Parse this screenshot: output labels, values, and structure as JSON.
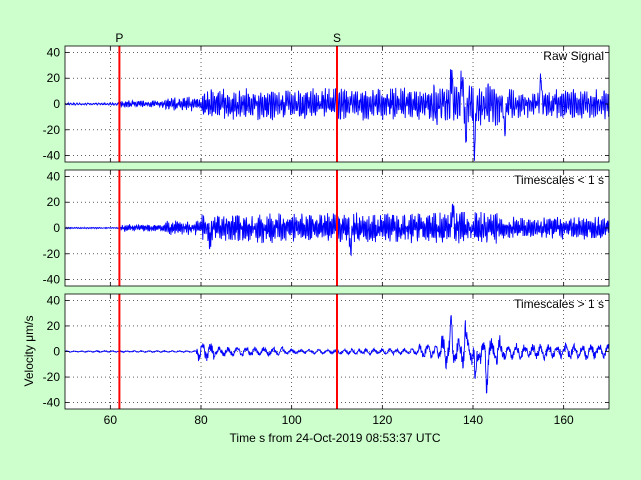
{
  "chart_data": {
    "type": "line",
    "xlabel": "Time s from 24-Oct-2019 08:53:37 UTC",
    "ylabel": "Velocity μm/s",
    "xlim": [
      50,
      170
    ],
    "ylim": [
      -45,
      45
    ],
    "x_ticks": [
      60,
      80,
      100,
      120,
      140,
      160
    ],
    "y_ticks": [
      -40,
      -20,
      0,
      20,
      40
    ],
    "grid": "dotted",
    "phase_markers": [
      {
        "label": "P",
        "x": 62,
        "color": "#ff0000"
      },
      {
        "label": "S",
        "x": 110,
        "color": "#ff0000"
      }
    ],
    "series_color": "#0000ff",
    "panels": [
      {
        "title": "Raw Signal",
        "segments": [
          {
            "t0": 50,
            "t1": 62,
            "amp": 1.0,
            "freq": 1.6
          },
          {
            "t0": 62,
            "t1": 72,
            "amp": 3.0,
            "freq": 2.8
          },
          {
            "t0": 72,
            "t1": 80,
            "amp": 6.0,
            "freq": 2.8
          },
          {
            "t0": 80,
            "t1": 110,
            "amp": 13.0,
            "freq": 2.6
          },
          {
            "t0": 110,
            "t1": 131,
            "amp": 13.0,
            "freq": 2.6
          },
          {
            "t0": 131,
            "t1": 146,
            "amp": 19.0,
            "freq": 2.2
          },
          {
            "t0": 146,
            "t1": 170,
            "amp": 12.0,
            "freq": 2.4
          }
        ],
        "peaks": [
          {
            "t": 135.3,
            "v": 25
          },
          {
            "t": 137.5,
            "v": 21
          },
          {
            "t": 138.4,
            "v": -25
          },
          {
            "t": 140.4,
            "v": -38
          },
          {
            "t": 155.0,
            "v": 22
          },
          {
            "t": 147.0,
            "v": -20
          }
        ]
      },
      {
        "title": "Timescales < 1 s",
        "segments": [
          {
            "t0": 50,
            "t1": 62,
            "amp": 0.6,
            "freq": 2.4
          },
          {
            "t0": 62,
            "t1": 72,
            "amp": 3.0,
            "freq": 3.2
          },
          {
            "t0": 72,
            "t1": 80,
            "amp": 6.0,
            "freq": 3.2
          },
          {
            "t0": 80,
            "t1": 110,
            "amp": 12.0,
            "freq": 3.0
          },
          {
            "t0": 110,
            "t1": 131,
            "amp": 12.0,
            "freq": 3.0
          },
          {
            "t0": 131,
            "t1": 146,
            "amp": 13.0,
            "freq": 3.0
          },
          {
            "t0": 146,
            "t1": 170,
            "amp": 9.0,
            "freq": 3.0
          }
        ],
        "peaks": [
          {
            "t": 135.6,
            "v": 21
          },
          {
            "t": 113.0,
            "v": -20
          },
          {
            "t": 82.0,
            "v": -13
          }
        ]
      },
      {
        "title": "Timescales > 1 s",
        "segments": [
          {
            "t0": 50,
            "t1": 79,
            "amp": 0.7,
            "freq": 0.6
          },
          {
            "t0": 79,
            "t1": 83,
            "amp": 8.0,
            "freq": 0.55
          },
          {
            "t0": 83,
            "t1": 98,
            "amp": 4.0,
            "freq": 0.5
          },
          {
            "t0": 98,
            "t1": 110,
            "amp": 2.0,
            "freq": 0.5
          },
          {
            "t0": 110,
            "t1": 128,
            "amp": 2.5,
            "freq": 0.6
          },
          {
            "t0": 128,
            "t1": 133,
            "amp": 6.0,
            "freq": 0.6
          },
          {
            "t0": 133,
            "t1": 146,
            "amp": 14.0,
            "freq": 0.55
          },
          {
            "t0": 146,
            "t1": 170,
            "amp": 7.0,
            "freq": 0.55
          }
        ],
        "peaks": [
          {
            "t": 135.2,
            "v": 17
          },
          {
            "t": 138.3,
            "v": 16
          },
          {
            "t": 140.5,
            "v": -27
          },
          {
            "t": 143.0,
            "v": -26
          }
        ]
      }
    ]
  }
}
